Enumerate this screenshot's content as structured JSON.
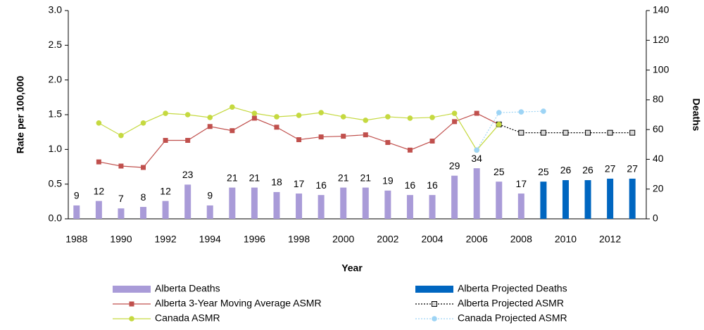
{
  "chart_data": {
    "type": "bar-line",
    "x_label": "Year",
    "y_label": "Rate per 100,000",
    "y2_label": "Deaths",
    "categories": [
      "1988",
      null,
      "1990",
      null,
      "1992",
      null,
      "1994",
      null,
      "1996",
      null,
      "1998",
      null,
      "2000",
      null,
      "2002",
      null,
      "2004",
      null,
      "2006",
      null,
      "2008",
      null,
      "2010",
      null,
      "2012",
      null
    ],
    "ylim": [
      0,
      3.0
    ],
    "yticks": [
      {
        "value": 0,
        "label": "0.0"
      },
      0.5,
      {
        "value": 1,
        "label": "1.0"
      },
      1.5,
      {
        "value": 2,
        "label": "2.0"
      },
      2.5,
      {
        "value": 3,
        "label": "3.0"
      }
    ],
    "y2lim": [
      0,
      140
    ],
    "y2ticks": [
      0,
      20,
      40,
      60,
      80,
      100,
      120,
      140
    ],
    "grid": false,
    "series": [
      {
        "name": "Alberta Deaths",
        "kind": "bar",
        "axis": "y2",
        "color": "#a99bd8",
        "show_values": true,
        "values": [
          9,
          12,
          7,
          8,
          12,
          23,
          9,
          21,
          21,
          18,
          17,
          16,
          21,
          21,
          19,
          16,
          16,
          29,
          34,
          25,
          17,
          null,
          null,
          null,
          null,
          null
        ]
      },
      {
        "name": "Alberta Projected Deaths",
        "kind": "bar",
        "axis": "y2",
        "color": "#0066c0",
        "show_values": true,
        "values": [
          null,
          null,
          null,
          null,
          null,
          null,
          null,
          null,
          null,
          null,
          null,
          null,
          null,
          null,
          null,
          null,
          null,
          null,
          null,
          null,
          null,
          25,
          26,
          26,
          27,
          27
        ]
      },
      {
        "name": "Alberta 3-Year Moving Average ASMR",
        "kind": "line",
        "color": "#c0504d",
        "marker": "square",
        "marker_fill": "#c0504d",
        "dashed": false,
        "values": [
          null,
          0.82,
          0.76,
          0.74,
          1.13,
          1.13,
          1.33,
          1.27,
          1.45,
          1.32,
          1.14,
          1.18,
          1.19,
          1.21,
          1.1,
          0.99,
          1.12,
          1.4,
          1.52,
          1.36,
          null,
          null,
          null,
          null,
          null,
          null
        ]
      },
      {
        "name": "Alberta Projected ASMR",
        "kind": "line",
        "color": "#000000",
        "marker": "square",
        "marker_fill": "#d9d9d9",
        "dashed": true,
        "values": [
          null,
          null,
          null,
          null,
          null,
          null,
          null,
          null,
          null,
          null,
          null,
          null,
          null,
          null,
          null,
          null,
          null,
          null,
          null,
          1.36,
          1.24,
          1.24,
          1.24,
          1.24,
          1.24,
          1.24
        ]
      },
      {
        "name": "Canada ASMR",
        "kind": "line",
        "color": "#c5d940",
        "marker": "circle",
        "marker_fill": "#c5d940",
        "dashed": false,
        "values": [
          null,
          1.38,
          1.2,
          1.38,
          1.52,
          1.5,
          1.46,
          1.61,
          1.52,
          1.47,
          1.49,
          1.53,
          1.47,
          1.42,
          1.47,
          1.45,
          1.46,
          1.52,
          0.99,
          1.36,
          null,
          null,
          null,
          null,
          null,
          null
        ]
      },
      {
        "name": "Canada Projected ASMR",
        "kind": "line",
        "color": "#9dd4f5",
        "marker": "circle",
        "marker_fill": "#9dd4f5",
        "dashed": true,
        "values": [
          null,
          null,
          null,
          null,
          null,
          null,
          null,
          null,
          null,
          null,
          null,
          null,
          null,
          null,
          null,
          null,
          null,
          null,
          0.99,
          1.53,
          1.54,
          1.55,
          null,
          null,
          null,
          null
        ]
      }
    ]
  }
}
